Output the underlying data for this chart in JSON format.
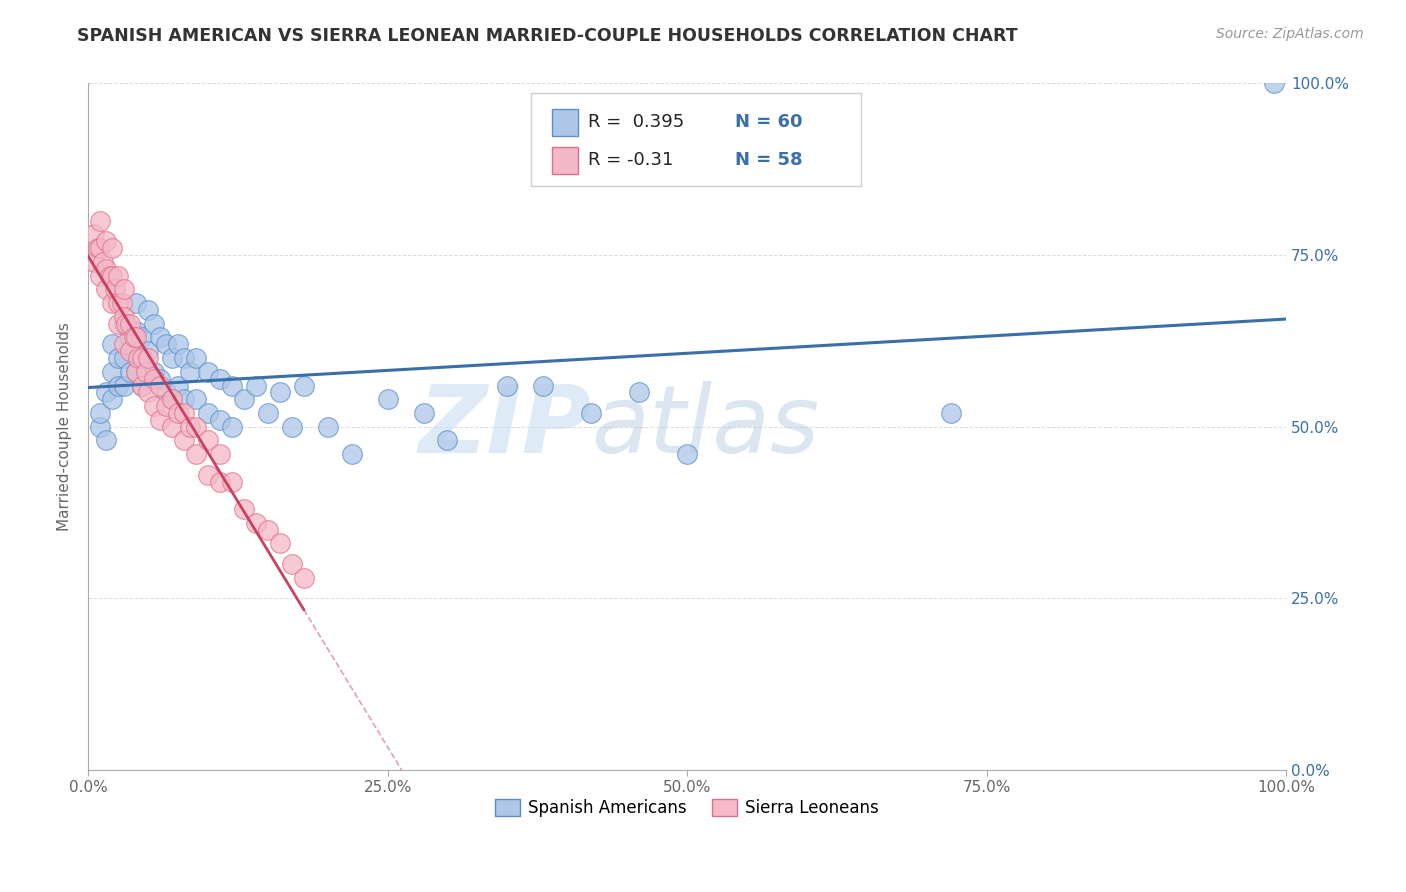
{
  "title": "SPANISH AMERICAN VS SIERRA LEONEAN MARRIED-COUPLE HOUSEHOLDS CORRELATION CHART",
  "source": "Source: ZipAtlas.com",
  "ylabel": "Married-couple Households",
  "xlim": [
    0,
    1
  ],
  "ylim": [
    0,
    1
  ],
  "xtick_vals": [
    0.0,
    0.25,
    0.5,
    0.75,
    1.0
  ],
  "xtick_labels": [
    "0.0%",
    "25.0%",
    "50.0%",
    "75.0%",
    "100.0%"
  ],
  "ytick_vals": [
    0.0,
    0.25,
    0.5,
    0.75,
    1.0
  ],
  "ytick_labels_right": [
    "0.0%",
    "25.0%",
    "50.0%",
    "75.0%",
    "100.0%"
  ],
  "blue_R": 0.395,
  "blue_N": 60,
  "pink_R": -0.31,
  "pink_N": 58,
  "blue_color": "#aec6e8",
  "pink_color": "#f4b8c8",
  "blue_edge": "#5b8fc9",
  "pink_edge": "#e0708a",
  "blue_line_color": "#3a6faa",
  "pink_line_color": "#c94060",
  "watermark_zip": "ZIP",
  "watermark_atlas": "atlas",
  "legend_label_blue": "Spanish Americans",
  "legend_label_pink": "Sierra Leoneans",
  "background_color": "#ffffff",
  "grid_color": "#cccccc",
  "title_color": "#333333",
  "source_color": "#999999",
  "axis_color": "#aaaaaa",
  "blue_scatter_x": [
    0.01,
    0.01,
    0.015,
    0.015,
    0.02,
    0.02,
    0.02,
    0.025,
    0.025,
    0.03,
    0.03,
    0.03,
    0.035,
    0.035,
    0.04,
    0.04,
    0.04,
    0.045,
    0.045,
    0.05,
    0.05,
    0.055,
    0.055,
    0.06,
    0.06,
    0.065,
    0.065,
    0.07,
    0.07,
    0.075,
    0.075,
    0.08,
    0.08,
    0.085,
    0.09,
    0.09,
    0.1,
    0.1,
    0.11,
    0.11,
    0.12,
    0.12,
    0.13,
    0.14,
    0.15,
    0.16,
    0.17,
    0.18,
    0.2,
    0.22,
    0.25,
    0.28,
    0.3,
    0.35,
    0.38,
    0.42,
    0.46,
    0.5,
    0.72,
    0.99
  ],
  "blue_scatter_y": [
    0.5,
    0.52,
    0.55,
    0.48,
    0.62,
    0.58,
    0.54,
    0.6,
    0.56,
    0.65,
    0.6,
    0.56,
    0.63,
    0.58,
    0.68,
    0.64,
    0.58,
    0.63,
    0.56,
    0.67,
    0.61,
    0.65,
    0.58,
    0.63,
    0.57,
    0.62,
    0.55,
    0.6,
    0.54,
    0.62,
    0.56,
    0.6,
    0.54,
    0.58,
    0.6,
    0.54,
    0.58,
    0.52,
    0.57,
    0.51,
    0.56,
    0.5,
    0.54,
    0.56,
    0.52,
    0.55,
    0.5,
    0.56,
    0.5,
    0.46,
    0.54,
    0.52,
    0.48,
    0.56,
    0.56,
    0.52,
    0.55,
    0.46,
    0.52,
    1.0
  ],
  "pink_scatter_x": [
    0.005,
    0.005,
    0.008,
    0.01,
    0.01,
    0.01,
    0.012,
    0.015,
    0.015,
    0.015,
    0.018,
    0.02,
    0.02,
    0.02,
    0.022,
    0.025,
    0.025,
    0.025,
    0.028,
    0.03,
    0.03,
    0.03,
    0.032,
    0.035,
    0.035,
    0.038,
    0.04,
    0.04,
    0.042,
    0.045,
    0.045,
    0.048,
    0.05,
    0.05,
    0.055,
    0.055,
    0.06,
    0.06,
    0.065,
    0.07,
    0.07,
    0.075,
    0.08,
    0.08,
    0.085,
    0.09,
    0.09,
    0.1,
    0.1,
    0.11,
    0.11,
    0.12,
    0.13,
    0.14,
    0.15,
    0.16,
    0.17,
    0.18
  ],
  "pink_scatter_y": [
    0.78,
    0.74,
    0.76,
    0.8,
    0.76,
    0.72,
    0.74,
    0.77,
    0.73,
    0.7,
    0.72,
    0.76,
    0.72,
    0.68,
    0.7,
    0.72,
    0.68,
    0.65,
    0.68,
    0.7,
    0.66,
    0.62,
    0.65,
    0.65,
    0.61,
    0.63,
    0.63,
    0.58,
    0.6,
    0.6,
    0.56,
    0.58,
    0.6,
    0.55,
    0.57,
    0.53,
    0.56,
    0.51,
    0.53,
    0.54,
    0.5,
    0.52,
    0.52,
    0.48,
    0.5,
    0.5,
    0.46,
    0.48,
    0.43,
    0.46,
    0.42,
    0.42,
    0.38,
    0.36,
    0.35,
    0.33,
    0.3,
    0.28
  ]
}
